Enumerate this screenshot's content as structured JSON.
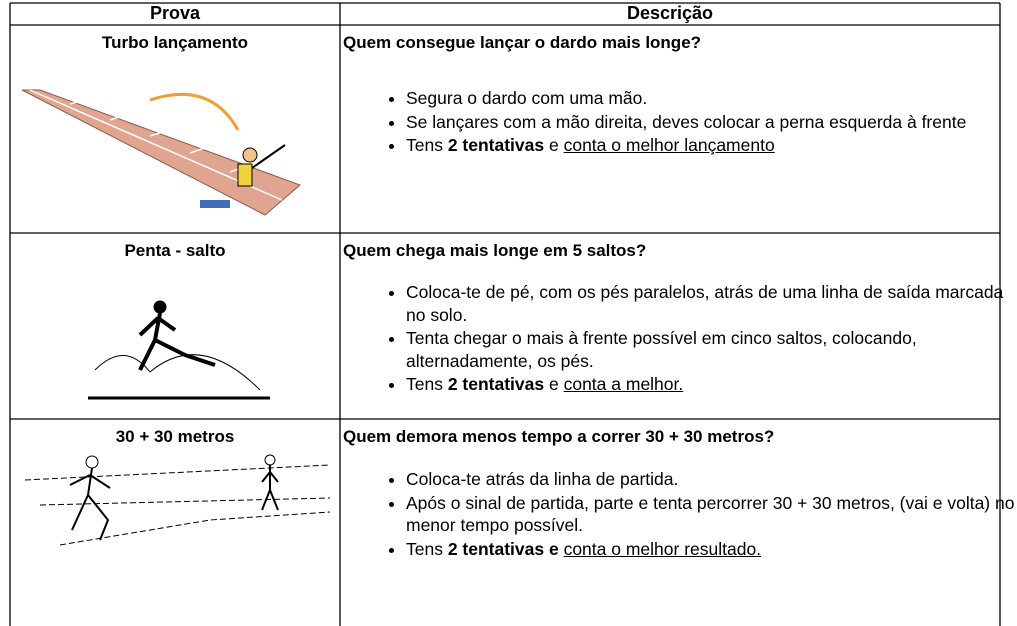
{
  "table": {
    "header": [
      "Prova",
      "Descrição"
    ],
    "rows": [
      {
        "title": "Turbo lançamento",
        "question": "Quem consegue lançar o dardo mais longe?",
        "bullets": [
          [
            {
              "text": "Segura o dardo com uma mão."
            }
          ],
          [
            {
              "text": "Se lançares com a mão direita, deves colocar a perna esquerda à frente"
            }
          ],
          [
            {
              "text": "Tens "
            },
            {
              "text": "2 tentativas",
              "bold": true
            },
            {
              "text": " e "
            },
            {
              "text": "conta o melhor lançamento",
              "underline": true
            }
          ]
        ]
      },
      {
        "title": "Penta - salto",
        "question": "Quem chega mais longe em 5 saltos?",
        "bullets": [
          [
            {
              "text": "Coloca-te de pé, com os pés paralelos, atrás de uma linha de saída marcada no solo."
            }
          ],
          [
            {
              "text": "Tenta chegar o mais à frente possível em cinco saltos, colocando, alternadamente, os pés."
            }
          ],
          [
            {
              "text": "Tens "
            },
            {
              "text": "2 tentativas",
              "bold": true
            },
            {
              "text": " e "
            },
            {
              "text": "conta a melhor.",
              "underline": true
            }
          ]
        ]
      },
      {
        "title": "30 + 30 metros",
        "question": "Quem demora menos tempo a correr 30 + 30 metros?",
        "bullets": [
          [
            {
              "text": "Coloca-te atrás da linha de partida."
            }
          ],
          [
            {
              "text": "Após o sinal de partida, parte e tenta percorrer 30 + 30 metros, (vai e volta) no menor tempo possível."
            }
          ],
          [
            {
              "text": "Tens "
            },
            {
              "text": "2 tentativas e ",
              "bold": true
            },
            {
              "text": "conta o melhor resultado.",
              "underline": true
            }
          ]
        ]
      }
    ]
  }
}
